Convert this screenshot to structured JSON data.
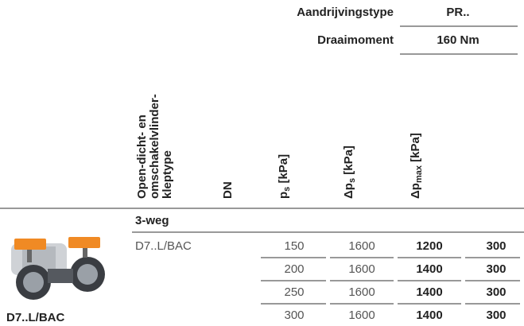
{
  "header": {
    "drive_type_label": "Aandrijvingstype",
    "drive_type": "PR..",
    "torque_label": "Draaimoment",
    "torque": "160 Nm"
  },
  "columns": {
    "type": [
      "Open-dicht- en",
      "omschakelvlinder-",
      "kleptype"
    ],
    "dn": "DN",
    "ps": {
      "main": "p",
      "sub": "s",
      "unit": " [kPa]"
    },
    "dps": {
      "main": "Δp",
      "sub": "s",
      "unit": " [kPa]"
    },
    "dpmax": {
      "main": "Δp",
      "sub": "max",
      "unit": " [kPa]"
    }
  },
  "group": "3-weg",
  "product_label": "D7..L/BAC",
  "rows": [
    {
      "type": "D7..L/BAC",
      "dn": "150",
      "ps": "1600",
      "dps": "1200",
      "dpmax": "300"
    },
    {
      "dn": "200",
      "ps": "1600",
      "dps": "1400",
      "dpmax": "300"
    },
    {
      "dn": "250",
      "ps": "1600",
      "dps": "1400",
      "dpmax": "300"
    },
    {
      "dn": "300",
      "ps": "1600",
      "dps": "1400",
      "dpmax": "300"
    }
  ]
}
